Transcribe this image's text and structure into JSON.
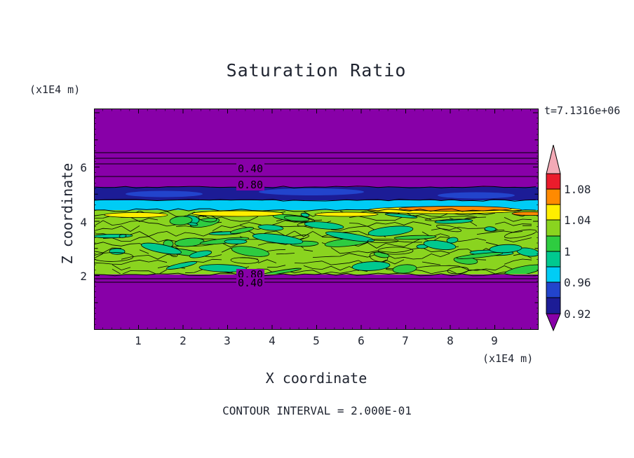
{
  "title": "Saturation Ratio",
  "timestamp": "t=7.1316e+06",
  "footnote": "CONTOUR INTERVAL = 2.000E-01",
  "axes": {
    "x": {
      "label": "X coordinate",
      "unit": "(x1E4 m)",
      "ticks": [
        "1",
        "2",
        "3",
        "4",
        "5",
        "6",
        "7",
        "8",
        "9"
      ]
    },
    "y": {
      "label": "Z coordinate",
      "unit": "(x1E4 m)",
      "ticks": [
        "6",
        "4",
        "2"
      ]
    }
  },
  "contour_labels": {
    "upper_a": "0.40",
    "upper_b": "0.80",
    "lower_a": "0.80",
    "lower_b": "0.40"
  },
  "colorbar": {
    "labels": [
      "1.08",
      "1.04",
      "1",
      "0.96",
      "0.92"
    ]
  },
  "colors": {
    "pink": "#f3aab6",
    "red": "#ea1c2c",
    "orange": "#ff8a00",
    "yellow": "#ffee00",
    "yellowgreen": "#8ad41f",
    "green": "#2ecc40",
    "teal": "#00c98f",
    "cyan": "#00ccf5",
    "blue": "#2244cc",
    "navy": "#1c1c96",
    "purple": "#8800a8",
    "frame": "#000000",
    "text": "#1f2430"
  },
  "chart_data": {
    "type": "heatmap",
    "subtype": "filled-contour",
    "title": "Saturation Ratio",
    "xlabel": "X coordinate",
    "ylabel": "Z coordinate",
    "axis_units": "(x1E4 m)",
    "x_range": [
      0,
      10
    ],
    "z_range": [
      0,
      8
    ],
    "x_ticks": [
      1,
      2,
      3,
      4,
      5,
      6,
      7,
      8,
      9
    ],
    "z_ticks": [
      2,
      4,
      6
    ],
    "time_annotation": "t=7.1316e+06",
    "contour_interval": 0.2,
    "contour_interval_label": "CONTOUR INTERVAL = 2.000E-01",
    "colorbar": {
      "tick_labels": [
        "1.08",
        "1.04",
        "1",
        "0.96",
        "0.92"
      ],
      "tick_values": [
        1.08,
        1.04,
        1.0,
        0.96,
        0.92
      ],
      "colors_bottom_to_top": [
        "#8800a8",
        "#1c1c96",
        "#2244cc",
        "#00ccf5",
        "#00c98f",
        "#2ecc40",
        "#8ad41f",
        "#ffee00",
        "#ff8a00",
        "#ea1c2c",
        "#f3aab6"
      ],
      "shape": "double-arrow"
    },
    "bands": [
      {
        "z_from": 5.3,
        "z_to": 8.0,
        "value": "low saturation background",
        "color": "#8800a8",
        "contour_labels": [
          "0.40",
          "0.80"
        ]
      },
      {
        "z_from": 4.8,
        "z_to": 5.3,
        "value": "~0.92 dark blue band with blue patches",
        "color": "#1c1c96"
      },
      {
        "z_from": 4.5,
        "z_to": 4.8,
        "value": "~0.96 cyan band",
        "color": "#00ccf5"
      },
      {
        "z_from": 2.0,
        "z_to": 4.5,
        "value": "~1.0 turbulent near-saturated layer, green/teal mottling, yellow-orange supersaturation streaks near layer top",
        "color": "#8ad41f"
      },
      {
        "z_from": 0.0,
        "z_to": 2.0,
        "value": "low saturation background",
        "color": "#8800a8",
        "contour_labels": [
          "0.80",
          "0.40"
        ]
      }
    ]
  }
}
